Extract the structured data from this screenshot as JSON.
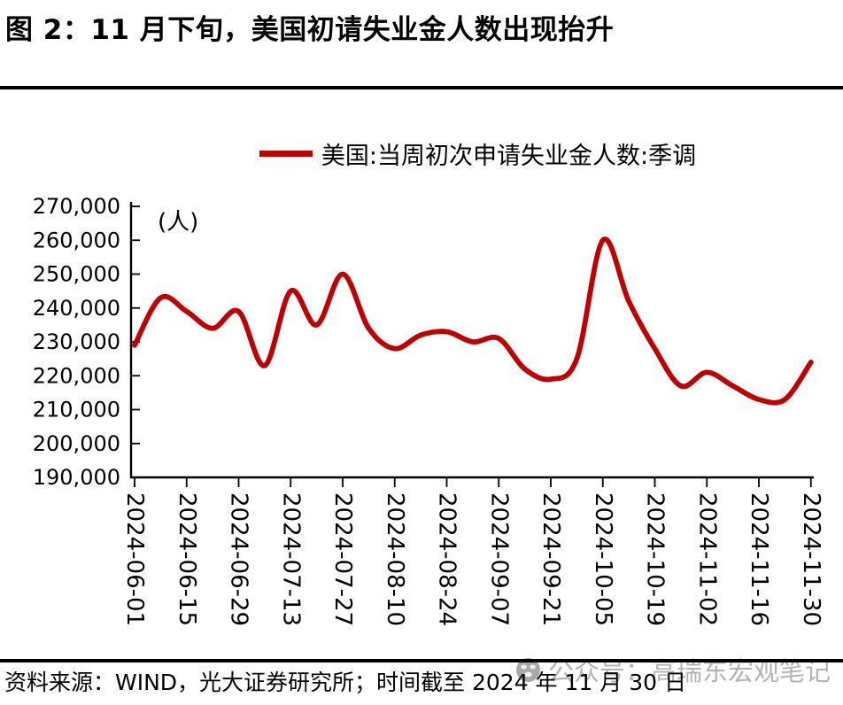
{
  "page": {
    "title": "图 2：11 月下旬，美国初请失业金人数出现抬升"
  },
  "legend": {
    "label": "美国:当周初次申请失业金人数:季调"
  },
  "chart_data": {
    "type": "line",
    "title": "图 2：11 月下旬，美国初请失业金人数出现抬升",
    "unit_label": "(人)",
    "line_color": "#C00000",
    "ylim": [
      190000,
      270000
    ],
    "ytick_step": 10000,
    "grid": false,
    "legend_position": "top-center",
    "ytick_labels": [
      "270,000",
      "260,000",
      "250,000",
      "240,000",
      "230,000",
      "220,000",
      "210,000",
      "200,000",
      "190,000"
    ],
    "xtick_labels": [
      "2024-06-01",
      "2024-06-15",
      "2024-06-29",
      "2024-07-13",
      "2024-07-27",
      "2024-08-10",
      "2024-08-24",
      "2024-09-07",
      "2024-09-21",
      "2024-10-05",
      "2024-10-19",
      "2024-11-02",
      "2024-11-16",
      "2024-11-30"
    ],
    "series": [
      {
        "name": "美国:当周初次申请失业金人数:季调",
        "x": [
          "2024-06-01",
          "2024-06-08",
          "2024-06-15",
          "2024-06-22",
          "2024-06-29",
          "2024-07-06",
          "2024-07-13",
          "2024-07-20",
          "2024-07-27",
          "2024-08-03",
          "2024-08-10",
          "2024-08-17",
          "2024-08-24",
          "2024-08-31",
          "2024-09-07",
          "2024-09-14",
          "2024-09-21",
          "2024-09-28",
          "2024-10-05",
          "2024-10-12",
          "2024-10-19",
          "2024-10-26",
          "2024-11-02",
          "2024-11-09",
          "2024-11-16",
          "2024-11-23",
          "2024-11-30"
        ],
        "values": [
          229000,
          243000,
          239000,
          234000,
          239000,
          223000,
          245000,
          235000,
          250000,
          234000,
          228000,
          232000,
          233000,
          230000,
          231000,
          222000,
          219000,
          225000,
          260000,
          242000,
          228000,
          217000,
          221000,
          217000,
          213000,
          213000,
          224000
        ]
      }
    ]
  },
  "footer": {
    "source": "资料来源：WIND，光大证券研究所；时间截至 2024 年 11 月 30 日"
  },
  "watermark": {
    "text": "公众号：高瑞东宏观笔记"
  }
}
